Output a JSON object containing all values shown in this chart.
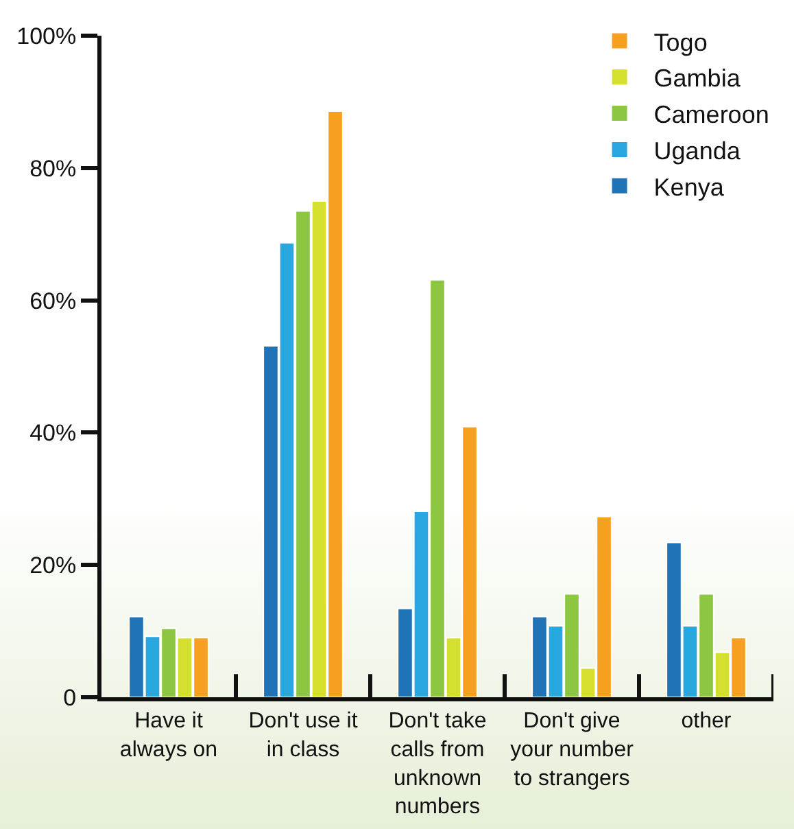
{
  "chart_data": {
    "type": "bar",
    "categories": [
      "Have it always on",
      "Don't use it in class",
      "Don't take calls from unknown numbers",
      "Don't give your number to strangers",
      "other"
    ],
    "series": [
      {
        "name": "Kenya",
        "color": "#2173b8",
        "values": [
          12.2,
          53.1,
          13.4,
          12.2,
          23.4
        ]
      },
      {
        "name": "Uganda",
        "color": "#29a8e0",
        "values": [
          9.2,
          68.7,
          28.1,
          10.8,
          10.8
        ]
      },
      {
        "name": "Cameroon",
        "color": "#8dc641",
        "values": [
          10.4,
          73.5,
          63.1,
          15.6,
          15.6
        ]
      },
      {
        "name": "Gambia",
        "color": "#d5df2d",
        "values": [
          9,
          75,
          9,
          4.4,
          6.8
        ]
      },
      {
        "name": "Togo",
        "color": "#f6a020",
        "values": [
          9,
          88.6,
          40.9,
          27.3,
          9
        ]
      }
    ],
    "ylim": [
      0,
      100
    ],
    "yticks": [
      0,
      {
        "value": 20,
        "label": "20%"
      },
      {
        "value": 40,
        "label": "40%"
      },
      {
        "value": 60,
        "label": "60%"
      },
      {
        "value": 80,
        "label": "80%"
      },
      {
        "value": 100,
        "label": "100%"
      }
    ],
    "grid": false,
    "legend": "top right"
  }
}
